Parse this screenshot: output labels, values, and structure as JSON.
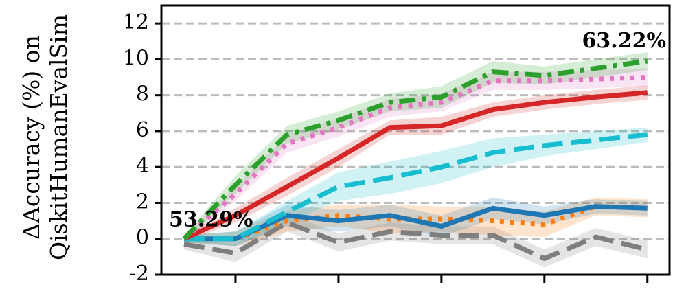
{
  "chart_data": {
    "type": "line",
    "ylabel": [
      "ΔAccuracy (%) on",
      "QiskitHumanEvalSim"
    ],
    "x": [
      0,
      1,
      2,
      3,
      4,
      5,
      6,
      7,
      8,
      9
    ],
    "xlim": [
      -0.44,
      9.43
    ],
    "xticks": [
      1,
      3,
      5,
      7,
      9
    ],
    "ylim": [
      -2,
      13
    ],
    "yticks": [
      -2,
      0,
      2,
      4,
      6,
      8,
      10,
      12
    ],
    "grid": true,
    "series": [
      {
        "color": "#7f7f7f",
        "style": "dashed",
        "values": [
          -0.3,
          -0.8,
          0.9,
          -0.2,
          0.4,
          0.2,
          0.2,
          -1.1,
          0.1,
          -0.6
        ],
        "errors": [
          0.3,
          0.5,
          0.5,
          0.5,
          0.5,
          0.5,
          0.5,
          0.5,
          0.5,
          0.5
        ]
      },
      {
        "color": "#ff7f0e",
        "style": "dotted",
        "values": [
          0,
          0,
          1.0,
          1.3,
          1.1,
          1.1,
          1.0,
          0.8,
          1.8,
          1.7
        ],
        "errors": [
          0.2,
          0.4,
          0.6,
          0.6,
          0.8,
          0.7,
          0.8,
          0.7,
          0.5,
          0.5
        ]
      },
      {
        "color": "#1f77b4",
        "style": "solid",
        "values": [
          0,
          0,
          1.3,
          1.0,
          1.3,
          0.7,
          1.7,
          1.3,
          1.8,
          1.7
        ],
        "errors": [
          0.2,
          0.4,
          0.6,
          0.6,
          0.6,
          0.6,
          0.6,
          0.5,
          0.4,
          0.4
        ]
      },
      {
        "color": "#17becf",
        "style": "dashed",
        "values": [
          0,
          0,
          1.5,
          2.9,
          3.4,
          4.0,
          4.8,
          5.2,
          5.5,
          5.8
        ],
        "errors": [
          0.2,
          0.4,
          0.6,
          0.8,
          0.9,
          0.9,
          0.8,
          0.6,
          0.5,
          0.4
        ]
      },
      {
        "color": "#d62728",
        "style": "solid",
        "values": [
          0,
          1.3,
          2.9,
          4.5,
          6.2,
          6.3,
          7.2,
          7.6,
          7.9,
          8.15
        ],
        "errors": [
          0.2,
          0.4,
          0.5,
          0.5,
          0.4,
          0.5,
          0.4,
          0.4,
          0.4,
          0.4
        ]
      },
      {
        "color": "#e377c2",
        "style": "dotted",
        "values": [
          0,
          2.5,
          5.3,
          6.2,
          7.3,
          7.6,
          8.8,
          8.8,
          8.9,
          9.0
        ],
        "errors": [
          0.2,
          0.4,
          0.5,
          0.5,
          0.5,
          0.5,
          0.5,
          0.5,
          0.5,
          0.5
        ]
      },
      {
        "color": "#2ca02c",
        "style": "dashdot",
        "values": [
          0,
          3.0,
          5.8,
          6.6,
          7.6,
          7.9,
          9.3,
          9.1,
          9.5,
          9.9
        ],
        "errors": [
          0.2,
          0.5,
          0.5,
          0.5,
          0.5,
          0.6,
          0.6,
          0.5,
          0.5,
          0.5
        ]
      }
    ],
    "annotations": [
      "53.29%",
      "63.22%"
    ]
  }
}
